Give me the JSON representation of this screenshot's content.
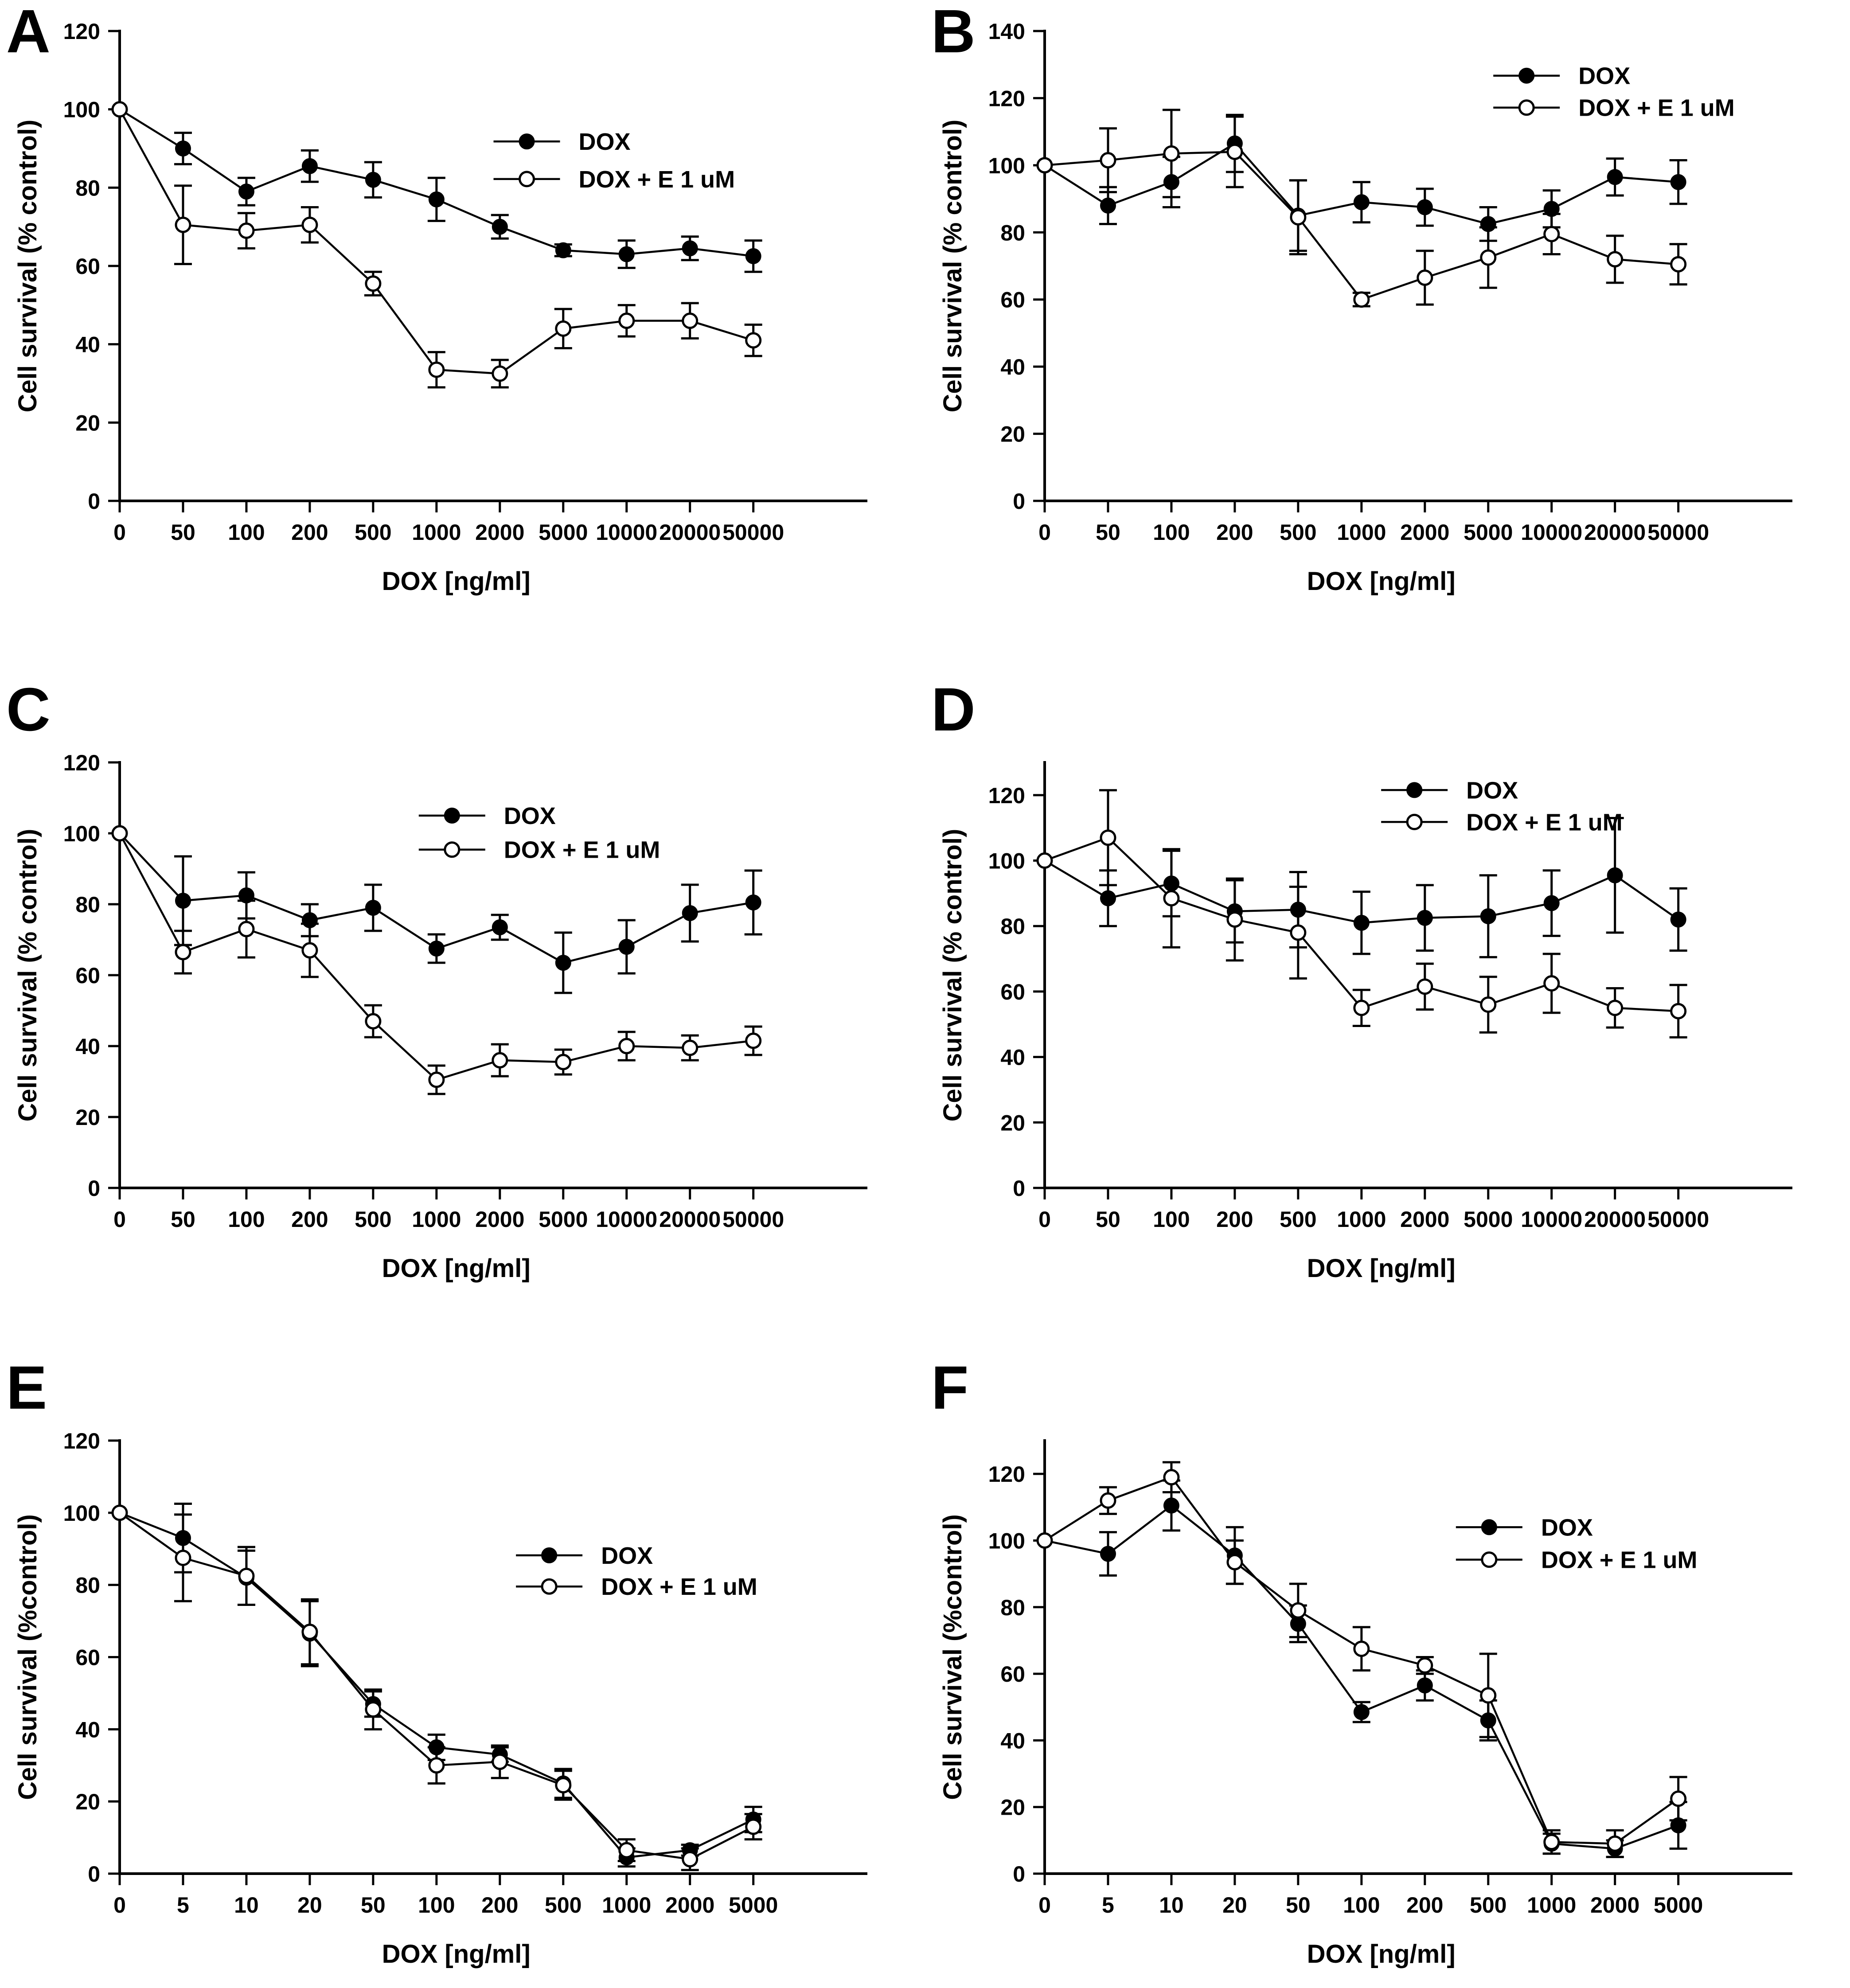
{
  "figure": {
    "panel_letters": [
      "A",
      "B",
      "C",
      "D",
      "E",
      "F"
    ],
    "line_color": "#000000",
    "background_color": "#ffffff"
  },
  "chart_data": [
    {
      "type": "line",
      "panel": "A",
      "title": "",
      "xlabel": "DOX [ng/ml]",
      "ylabel": "Cell survival (% control)",
      "categories": [
        "0",
        "50",
        "100",
        "200",
        "500",
        "1000",
        "2000",
        "5000",
        "10000",
        "20000",
        "50000"
      ],
      "ylim": [
        0,
        120
      ],
      "ytick_step": 20,
      "ytick_max": 120,
      "grid": false,
      "legend_position": {
        "x_frac": 0.5,
        "y_frac": 0.235,
        "row_gap_frac": 0.08
      },
      "series": [
        {
          "name": "DOX",
          "marker": "filled-circle",
          "values": [
            100,
            90,
            79,
            85.5,
            82,
            77,
            70,
            64,
            63,
            64.5,
            62.5
          ],
          "errors": [
            0,
            4,
            3.5,
            4,
            4.5,
            5.5,
            3,
            1.5,
            3.5,
            3,
            4
          ]
        },
        {
          "name": "DOX + E 1 uM",
          "marker": "open-circle",
          "values": [
            100,
            70.5,
            69,
            70.5,
            55.5,
            33.5,
            32.5,
            44,
            46,
            46,
            41
          ],
          "errors": [
            0,
            10,
            4.5,
            4.5,
            3,
            4.5,
            3.5,
            5,
            4,
            4.5,
            4
          ]
        }
      ]
    },
    {
      "type": "line",
      "panel": "B",
      "title": "",
      "xlabel": "DOX [ng/ml]",
      "ylabel": "Cell survival (% control)",
      "categories": [
        "0",
        "50",
        "100",
        "200",
        "500",
        "1000",
        "2000",
        "5000",
        "10000",
        "20000",
        "50000"
      ],
      "ylim": [
        0,
        140
      ],
      "ytick_step": 20,
      "ytick_max": 140,
      "grid": false,
      "legend_position": {
        "x_frac": 0.6,
        "y_frac": 0.095,
        "row_gap_frac": 0.068
      },
      "series": [
        {
          "name": "DOX",
          "marker": "filled-circle",
          "values": [
            100,
            88,
            95,
            106.5,
            85,
            89,
            87.5,
            82.5,
            87,
            96.5,
            95
          ],
          "errors": [
            0,
            5.5,
            7.5,
            8.5,
            10.5,
            6,
            5.5,
            5,
            5.5,
            5.5,
            6.5
          ]
        },
        {
          "name": "DOX + E 1 uM",
          "marker": "open-circle",
          "values": [
            100,
            101.5,
            103.5,
            104,
            84.5,
            60,
            66.5,
            72.5,
            79.5,
            72,
            70.5
          ],
          "errors": [
            0,
            9.5,
            13,
            10.5,
            11,
            2,
            8,
            9,
            6,
            7,
            6
          ]
        }
      ]
    },
    {
      "type": "line",
      "panel": "C",
      "title": "",
      "xlabel": "DOX [ng/ml]",
      "ylabel": "Cell survival (% control)",
      "categories": [
        "0",
        "50",
        "100",
        "200",
        "500",
        "1000",
        "2000",
        "5000",
        "10000",
        "20000",
        "50000"
      ],
      "ylim": [
        0,
        120
      ],
      "ytick_step": 20,
      "ytick_max": 120,
      "grid": false,
      "legend_position": {
        "x_frac": 0.4,
        "y_frac": 0.125,
        "row_gap_frac": 0.08
      },
      "series": [
        {
          "name": "DOX",
          "marker": "filled-circle",
          "values": [
            100,
            81,
            82.5,
            75.5,
            79,
            67.5,
            73.5,
            63.5,
            68,
            77.5,
            80.5
          ],
          "errors": [
            0,
            12.5,
            6.5,
            4.5,
            6.5,
            4,
            3.5,
            8.5,
            7.5,
            8,
            9
          ]
        },
        {
          "name": "DOX + E 1 uM",
          "marker": "open-circle",
          "values": [
            100,
            66.5,
            73,
            67,
            47,
            30.5,
            36,
            35.5,
            40,
            39.5,
            41.5
          ],
          "errors": [
            0,
            6,
            8,
            7.5,
            4.5,
            4,
            4.5,
            3.5,
            4,
            3.5,
            4
          ]
        }
      ]
    },
    {
      "type": "line",
      "panel": "D",
      "title": "",
      "xlabel": "DOX [ng/ml]",
      "ylabel": "Cell survival (% control)",
      "categories": [
        "0",
        "50",
        "100",
        "200",
        "500",
        "1000",
        "2000",
        "5000",
        "10000",
        "20000",
        "50000"
      ],
      "ylim": [
        0,
        130
      ],
      "ytick_step": 20,
      "ytick_max": 120,
      "grid": false,
      "legend_position": {
        "x_frac": 0.45,
        "y_frac": 0.065,
        "row_gap_frac": 0.075
      },
      "series": [
        {
          "name": "DOX",
          "marker": "filled-circle",
          "values": [
            100,
            88.5,
            93,
            84.5,
            85,
            81,
            82.5,
            83,
            87,
            95.5,
            82
          ],
          "errors": [
            0,
            8.5,
            10,
            9.5,
            11.5,
            9.5,
            10,
            12.5,
            10,
            17.5,
            9.5
          ]
        },
        {
          "name": "DOX + E 1 uM",
          "marker": "open-circle",
          "values": [
            100,
            107,
            88.5,
            82,
            78,
            55,
            61.5,
            56,
            62.5,
            55,
            54
          ],
          "errors": [
            0,
            14.5,
            15,
            12.5,
            14,
            5.5,
            7,
            8.5,
            9,
            6,
            8
          ]
        }
      ]
    },
    {
      "type": "line",
      "panel": "E",
      "title": "",
      "xlabel": "DOX [ng/ml]",
      "ylabel": "Cell survival (%control)",
      "categories": [
        "0",
        "5",
        "10",
        "20",
        "50",
        "100",
        "200",
        "500",
        "1000",
        "2000",
        "5000"
      ],
      "ylim": [
        0,
        120
      ],
      "ytick_step": 20,
      "ytick_max": 120,
      "grid": false,
      "legend_position": {
        "x_frac": 0.53,
        "y_frac": 0.265,
        "row_gap_frac": 0.072
      },
      "series": [
        {
          "name": "DOX",
          "marker": "filled-circle",
          "values": [
            100,
            93,
            82,
            66.5,
            47,
            35,
            33,
            25,
            4.5,
            6.5,
            15
          ],
          "errors": [
            0,
            9.5,
            7.5,
            9,
            3.5,
            3.5,
            2,
            4,
            2.5,
            1.5,
            3.5
          ]
        },
        {
          "name": "DOX + E 1 uM",
          "marker": "open-circle",
          "values": [
            100,
            87.5,
            82.5,
            67,
            45.5,
            30,
            31,
            24.5,
            6.5,
            4,
            13
          ],
          "errors": [
            0,
            12,
            8,
            9,
            5.5,
            5,
            4.5,
            4,
            3,
            3,
            3.5
          ]
        }
      ]
    },
    {
      "type": "line",
      "panel": "F",
      "title": "",
      "xlabel": "DOX [ng/ml]",
      "ylabel": "Cell survival (%control)",
      "categories": [
        "0",
        "5",
        "10",
        "20",
        "50",
        "100",
        "200",
        "500",
        "1000",
        "2000",
        "5000"
      ],
      "ylim": [
        0,
        130
      ],
      "ytick_step": 20,
      "ytick_max": 120,
      "grid": false,
      "legend_position": {
        "x_frac": 0.55,
        "y_frac": 0.2,
        "row_gap_frac": 0.075
      },
      "series": [
        {
          "name": "DOX",
          "marker": "filled-circle",
          "values": [
            100,
            96,
            110.5,
            95.5,
            75,
            48.5,
            56.5,
            46,
            9,
            7.5,
            14.5
          ],
          "errors": [
            0,
            6.5,
            7.5,
            8.5,
            5.5,
            3,
            4.5,
            6,
            3,
            2.5,
            7
          ]
        },
        {
          "name": "DOX + E 1 uM",
          "marker": "open-circle",
          "values": [
            100,
            112,
            119,
            93.5,
            79,
            67.5,
            62.5,
            53.5,
            9.5,
            9,
            22.5
          ],
          "errors": [
            0,
            4,
            4.5,
            6.5,
            8,
            6.5,
            2.5,
            12.5,
            3.5,
            4,
            6.5
          ]
        }
      ]
    }
  ]
}
